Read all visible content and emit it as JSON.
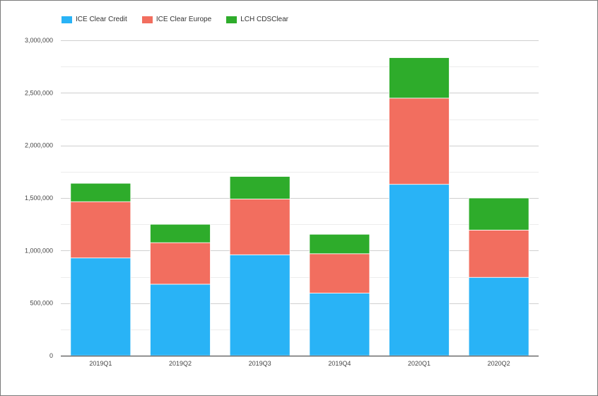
{
  "chart_data": {
    "type": "bar",
    "stacked": true,
    "categories": [
      "2019Q1",
      "2019Q2",
      "2019Q3",
      "2019Q4",
      "2020Q1",
      "2020Q2"
    ],
    "series": [
      {
        "name": "ICE Clear Credit",
        "color": "#29b3f6",
        "values": [
          930000,
          680000,
          960000,
          595000,
          1630000,
          745000
        ]
      },
      {
        "name": "ICE Clear Europe",
        "color": "#f26e5f",
        "values": [
          535000,
          395000,
          530000,
          375000,
          820000,
          450000
        ]
      },
      {
        "name": "LCH CDSClear",
        "color": "#2eac2b",
        "values": [
          175000,
          175000,
          215000,
          185000,
          385000,
          305000
        ]
      }
    ],
    "y_ticks": [
      "0",
      "500,000",
      "1,000,000",
      "1,500,000",
      "2,000,000",
      "2,500,000",
      "3,000,000"
    ],
    "ylim": [
      0,
      3000000
    ],
    "grid": true,
    "legend_position": "top-left"
  }
}
